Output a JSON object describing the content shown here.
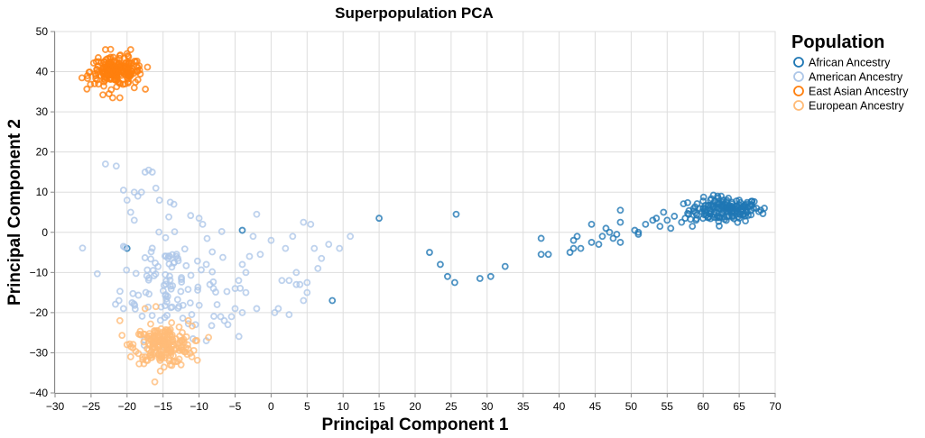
{
  "chart_data": {
    "type": "scatter",
    "title": "Superpopulation PCA",
    "xlabel": "Principal Component 1",
    "ylabel": "Principal Component 2",
    "xlim": [
      -30,
      70
    ],
    "ylim": [
      -40,
      50
    ],
    "xticks": [
      -30,
      -25,
      -20,
      -15,
      -10,
      -5,
      0,
      5,
      10,
      15,
      20,
      25,
      30,
      35,
      40,
      45,
      50,
      55,
      60,
      65,
      70
    ],
    "yticks": [
      -40,
      -30,
      -20,
      -10,
      0,
      10,
      20,
      30,
      40,
      50
    ],
    "grid": true,
    "legend": {
      "title": "Population",
      "position": "right",
      "entries": [
        "African Ancestry",
        "American Ancestry",
        "East Asian Ancestry",
        "European Ancestry"
      ]
    },
    "series": [
      {
        "name": "African Ancestry",
        "color": "#1f77b4",
        "marker": "open-circle",
        "clusters": [
          {
            "center": [
              63,
              5.5
            ],
            "spread": [
              2.5,
              1.5
            ],
            "count": 150
          }
        ],
        "points": [
          [
            -20,
            -4
          ],
          [
            -4,
            0.5
          ],
          [
            8.5,
            -17
          ],
          [
            15,
            3.5
          ],
          [
            22,
            -5
          ],
          [
            23.5,
            -8
          ],
          [
            24.5,
            -11
          ],
          [
            25.5,
            -12.5
          ],
          [
            25.7,
            4.5
          ],
          [
            29,
            -11.5
          ],
          [
            30.5,
            -11
          ],
          [
            32.5,
            -8.5
          ],
          [
            37.5,
            -1.5
          ],
          [
            37.5,
            -5.5
          ],
          [
            38.5,
            -5.5
          ],
          [
            41.5,
            -5
          ],
          [
            42,
            -2
          ],
          [
            42,
            -4
          ],
          [
            42.5,
            -1
          ],
          [
            43,
            -4
          ],
          [
            44.5,
            2
          ],
          [
            44.5,
            -2.5
          ],
          [
            45.5,
            -3
          ],
          [
            46,
            -1
          ],
          [
            46.5,
            1
          ],
          [
            47,
            0
          ],
          [
            47.5,
            -1.5
          ],
          [
            48,
            -0.5
          ],
          [
            48.5,
            5.5
          ],
          [
            48.5,
            2.5
          ],
          [
            48.5,
            -2.5
          ],
          [
            50.5,
            0.5
          ],
          [
            51,
            -0.5
          ],
          [
            51,
            0
          ],
          [
            52,
            2
          ],
          [
            53,
            3
          ],
          [
            53.5,
            3.5
          ],
          [
            54,
            1.5
          ],
          [
            54.5,
            5
          ],
          [
            55,
            3
          ],
          [
            55.5,
            1
          ],
          [
            56,
            4
          ],
          [
            57,
            2.5
          ],
          [
            57.5,
            3.5
          ],
          [
            58,
            4.5
          ],
          [
            58.5,
            1.5
          ],
          [
            59,
            3
          ],
          [
            60,
            6
          ],
          [
            61,
            8
          ],
          [
            62,
            9
          ],
          [
            62.5,
            9
          ],
          [
            63.5,
            8.5
          ],
          [
            64,
            7.5
          ],
          [
            65,
            8
          ],
          [
            66,
            7
          ],
          [
            66.5,
            6.5
          ],
          [
            67,
            6
          ],
          [
            68,
            5.5
          ],
          [
            68.5,
            6
          ]
        ]
      },
      {
        "name": "American Ancestry",
        "color": "#aec7e8",
        "marker": "open-circle",
        "clusters": [
          {
            "center": [
              -14,
              -12
            ],
            "spread": [
              3.5,
              7
            ],
            "count": 110
          }
        ],
        "points": [
          [
            -23,
            17
          ],
          [
            -21.5,
            16.5
          ],
          [
            -20.5,
            10.5
          ],
          [
            -20,
            8
          ],
          [
            -19.5,
            5
          ],
          [
            -19,
            3
          ],
          [
            -19,
            10
          ],
          [
            -18.5,
            9
          ],
          [
            -18,
            10
          ],
          [
            -17.5,
            15
          ],
          [
            -17,
            15.5
          ],
          [
            -16.5,
            15
          ],
          [
            -20.5,
            -3.5
          ],
          [
            -20.5,
            -19
          ],
          [
            -16,
            11
          ],
          [
            -15.5,
            8
          ],
          [
            -14,
            7.5
          ],
          [
            -13.5,
            7
          ],
          [
            -10,
            3.5
          ],
          [
            -9.5,
            2
          ],
          [
            -9,
            -8
          ],
          [
            -8.5,
            -13
          ],
          [
            -8,
            -14
          ],
          [
            -7.5,
            -18
          ],
          [
            -7,
            -21
          ],
          [
            -6.5,
            -22
          ],
          [
            -6,
            -23
          ],
          [
            -5.5,
            -21
          ],
          [
            -5,
            -19
          ],
          [
            -5,
            -14
          ],
          [
            -4.5,
            -12
          ],
          [
            -4,
            -8
          ],
          [
            -4,
            -20
          ],
          [
            -3.5,
            -15
          ],
          [
            -3.5,
            -10
          ],
          [
            -3,
            -6
          ],
          [
            -2.5,
            -1
          ],
          [
            -2,
            4.5
          ],
          [
            -2,
            -19
          ],
          [
            -1.5,
            -5.5
          ],
          [
            0,
            -2
          ],
          [
            0.5,
            -20
          ],
          [
            1,
            -19
          ],
          [
            1.5,
            -12
          ],
          [
            2,
            -4
          ],
          [
            2.5,
            -12
          ],
          [
            2.5,
            -20.5
          ],
          [
            3,
            -1
          ],
          [
            3.5,
            -10
          ],
          [
            3.5,
            -13
          ],
          [
            4,
            -13
          ],
          [
            4.5,
            2.5
          ],
          [
            4.5,
            -17
          ],
          [
            5,
            -15
          ],
          [
            5.5,
            2
          ],
          [
            5,
            -12.5
          ],
          [
            6,
            -4
          ],
          [
            6.5,
            -9
          ],
          [
            7,
            -6.5
          ],
          [
            8,
            -3
          ],
          [
            9.5,
            -4
          ],
          [
            11,
            -1
          ],
          [
            -10.5,
            -23
          ],
          [
            -9,
            -27
          ]
        ]
      },
      {
        "name": "East Asian Ancestry",
        "color": "#ff7f0e",
        "marker": "open-circle",
        "clusters": [
          {
            "center": [
              -21.5,
              40
            ],
            "spread": [
              1.8,
              1.7
            ],
            "count": 200
          }
        ],
        "points": [
          [
            -25.5,
            39
          ],
          [
            -24.5,
            37
          ],
          [
            -24,
            43.5
          ],
          [
            -23,
            45.5
          ],
          [
            -22.5,
            34.5
          ],
          [
            -22,
            33.5
          ],
          [
            -21,
            33.5
          ],
          [
            -20,
            44.5
          ],
          [
            -19.5,
            45.5
          ],
          [
            -18.5,
            41
          ],
          [
            -18.5,
            38
          ],
          [
            -19,
            36
          ]
        ]
      },
      {
        "name": "European Ancestry",
        "color": "#ffbb78",
        "marker": "open-circle",
        "clusters": [
          {
            "center": [
              -15,
              -28
            ],
            "spread": [
              2,
              2.3
            ],
            "count": 200
          }
        ],
        "points": [
          [
            -21,
            -22
          ],
          [
            -20,
            -28
          ],
          [
            -19.5,
            -31
          ],
          [
            -17.5,
            -19
          ],
          [
            -16,
            -18.5
          ],
          [
            -14,
            -33
          ],
          [
            -12.5,
            -33
          ],
          [
            -11,
            -31
          ],
          [
            -10.5,
            -27
          ],
          [
            -11.5,
            -22
          ]
        ]
      }
    ]
  }
}
